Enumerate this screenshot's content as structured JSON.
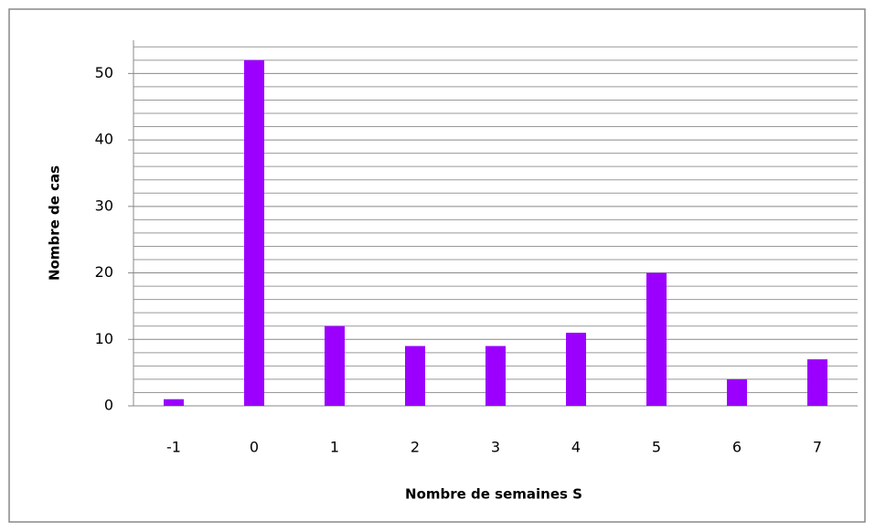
{
  "chart_data": {
    "type": "bar",
    "x_label": "Nombre de semaines S",
    "y_label": "Nombre de cas",
    "categories": [
      "-1",
      "0",
      "1",
      "2",
      "3",
      "4",
      "5",
      "6",
      "7"
    ],
    "values": [
      1,
      52,
      12,
      9,
      9,
      11,
      20,
      4,
      7
    ],
    "color": "#9b00ff",
    "ylim": [
      0,
      55
    ],
    "yticks": [
      0,
      10,
      20,
      30,
      40,
      50
    ],
    "minor_yticks": [
      2,
      4,
      6,
      8,
      12,
      14,
      16,
      18,
      22,
      24,
      26,
      28,
      32,
      34,
      36,
      38,
      42,
      44,
      46,
      48,
      52,
      54
    ],
    "grid": true
  }
}
